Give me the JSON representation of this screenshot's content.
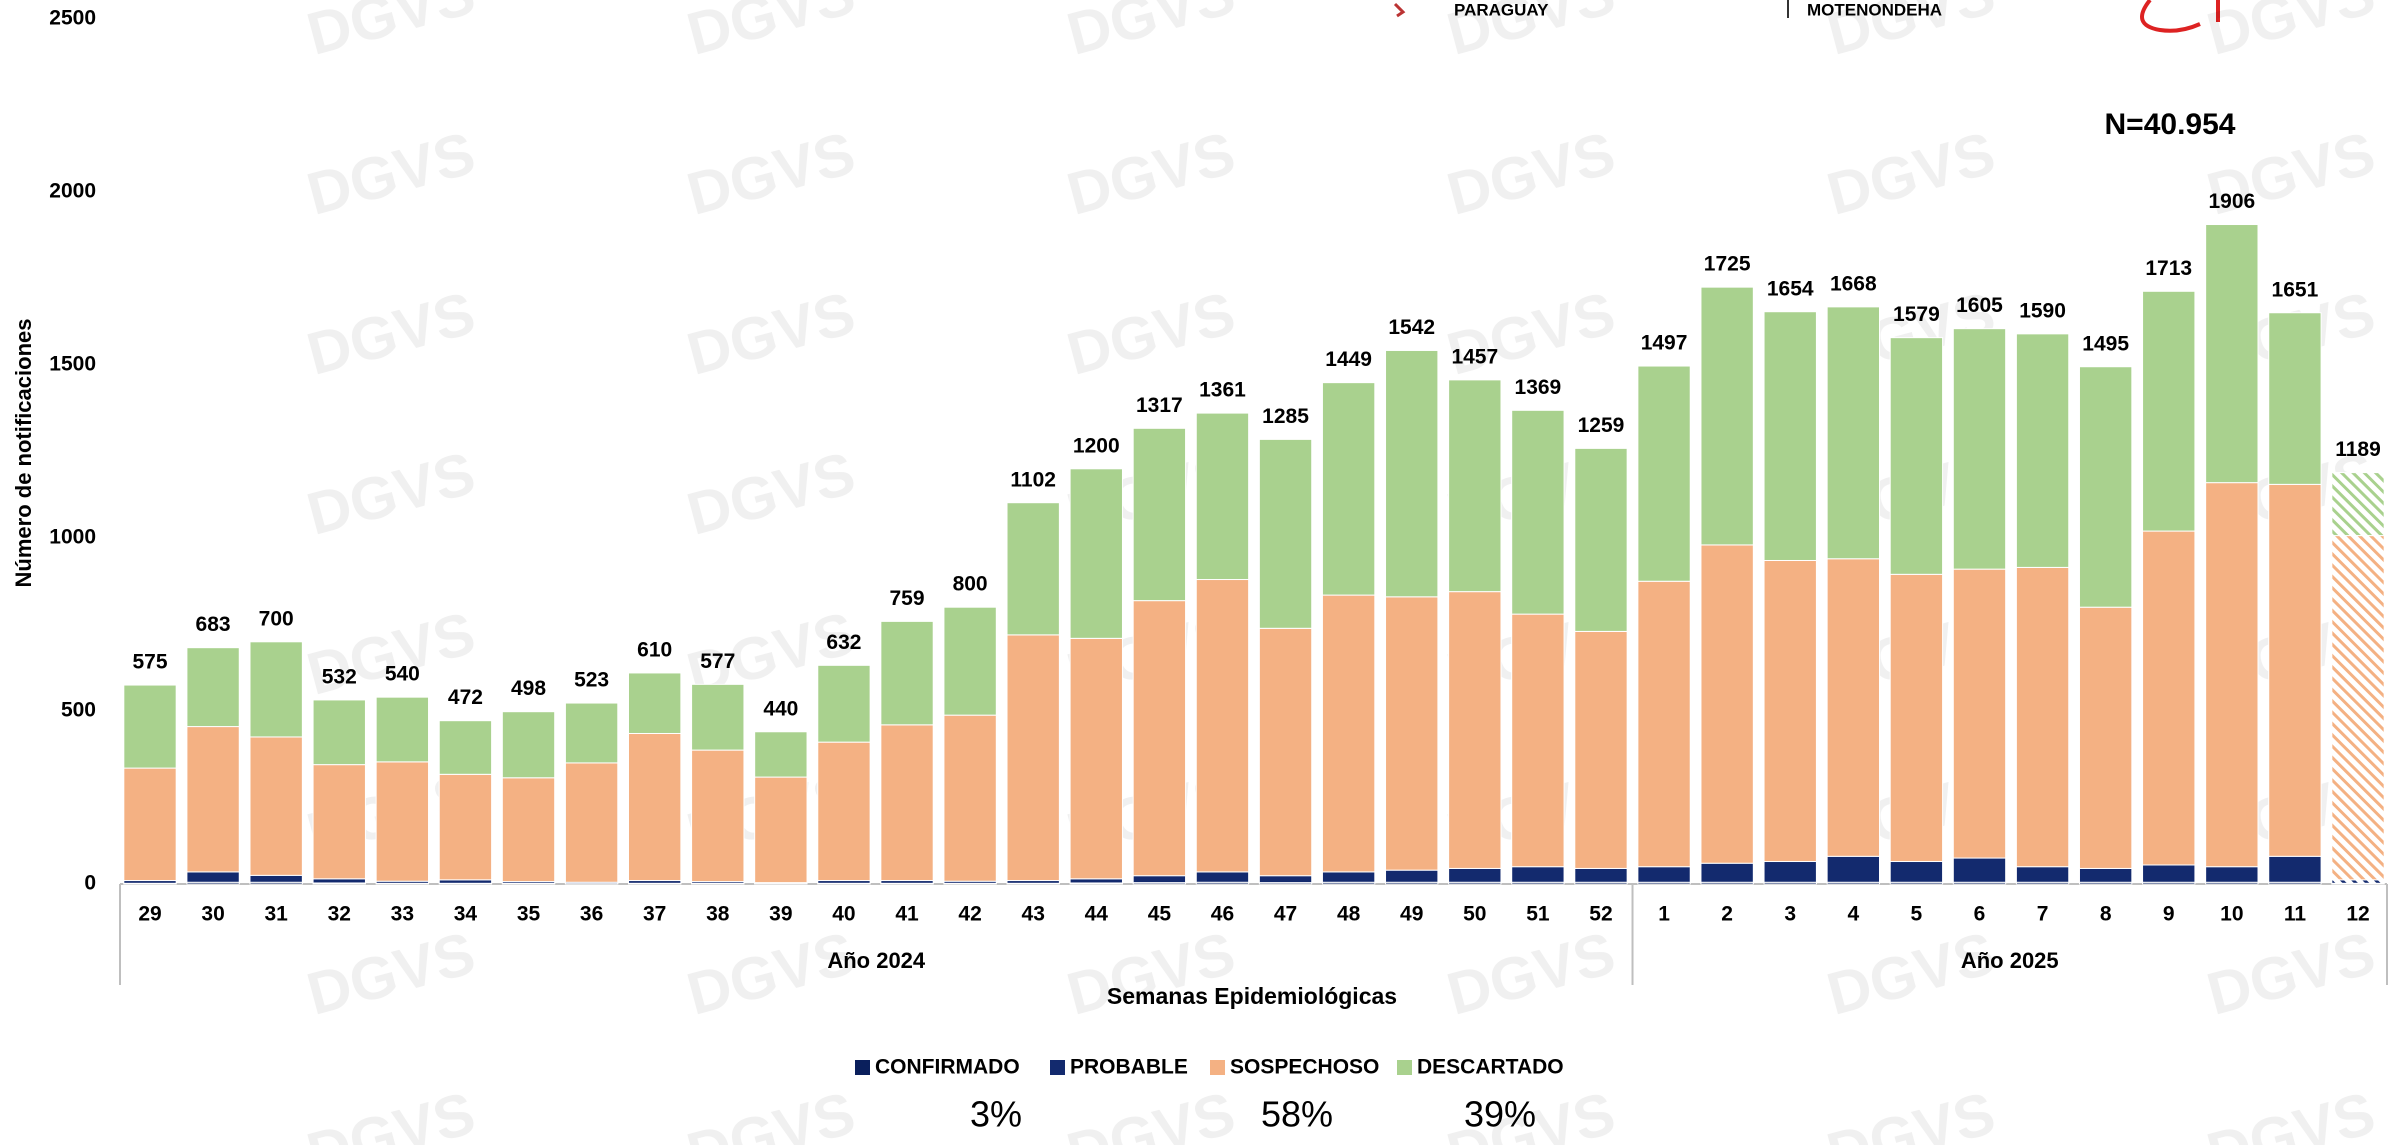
{
  "chart_data": {
    "type": "stacked_bar",
    "annotation": "N=40.954",
    "y_label": "Número de notificaciones",
    "x_label": "Semanas Epidemiológicas",
    "header_texts": [
      "PARAGUAY",
      "MOTENONDEHA"
    ],
    "watermark": "DGVS",
    "categories": [
      "29",
      "30",
      "31",
      "32",
      "33",
      "34",
      "35",
      "36",
      "37",
      "38",
      "39",
      "40",
      "41",
      "42",
      "43",
      "44",
      "45",
      "46",
      "47",
      "48",
      "49",
      "50",
      "51",
      "52",
      "1",
      "2",
      "3",
      "4",
      "5",
      "6",
      "7",
      "8",
      "9",
      "10",
      "11",
      "12"
    ],
    "groups": [
      {
        "label": "Año 2024",
        "start": "29",
        "end": "52"
      },
      {
        "label": "Año 2025",
        "start": "1",
        "end": "12"
      }
    ],
    "hatched_categories": [
      "12"
    ],
    "series": [
      {
        "name": "CONFIRMADO",
        "color": "#0a1f5c",
        "values": [
          2,
          5,
          5,
          3,
          2,
          2,
          2,
          1,
          2,
          2,
          1,
          2,
          2,
          2,
          2,
          3,
          4,
          5,
          4,
          5,
          5,
          5,
          5,
          5,
          5,
          5,
          5,
          5,
          5,
          5,
          5,
          5,
          5,
          5,
          5,
          2
        ]
      },
      {
        "name": "PROBABLE",
        "color": "#132a6e",
        "values": [
          8,
          30,
          20,
          12,
          6,
          10,
          5,
          4,
          8,
          5,
          3,
          8,
          8,
          6,
          8,
          12,
          20,
          30,
          20,
          30,
          35,
          40,
          45,
          40,
          45,
          55,
          60,
          75,
          60,
          70,
          45,
          40,
          50,
          45,
          75,
          10
        ]
      },
      {
        "name": "SOSPECHOSO",
        "color": "#f4b183",
        "values": [
          325,
          420,
          400,
          330,
          345,
          305,
          300,
          345,
          425,
          380,
          305,
          400,
          450,
          480,
          710,
          695,
          795,
          845,
          715,
          800,
          790,
          800,
          730,
          685,
          825,
          920,
          870,
          860,
          830,
          835,
          865,
          755,
          965,
          1110,
          1075,
          995
        ]
      },
      {
        "name": "DESCARTADO",
        "color": "#a9d18e",
        "values": [
          240,
          228,
          275,
          187,
          187,
          155,
          191,
          173,
          175,
          190,
          131,
          222,
          299,
          312,
          382,
          490,
          498,
          481,
          546,
          614,
          712,
          612,
          589,
          529,
          622,
          745,
          719,
          728,
          684,
          695,
          675,
          695,
          693,
          746,
          496,
          182
        ]
      }
    ],
    "totals": [
      575,
      683,
      700,
      532,
      540,
      472,
      498,
      523,
      610,
      577,
      440,
      632,
      759,
      800,
      1102,
      1200,
      1317,
      1361,
      1285,
      1449,
      1542,
      1457,
      1369,
      1259,
      1497,
      1725,
      1654,
      1668,
      1579,
      1605,
      1590,
      1495,
      1713,
      1906,
      1651,
      1189
    ],
    "shares": [
      {
        "value": 3,
        "label": "3%"
      },
      {
        "value": 58,
        "label": "58%"
      },
      {
        "value": 39,
        "label": "39%"
      }
    ],
    "ylim": [
      0,
      2500
    ],
    "yticks": [
      0,
      500,
      1000,
      1500,
      2000,
      2500
    ],
    "grid": false,
    "legend": "bottom"
  }
}
